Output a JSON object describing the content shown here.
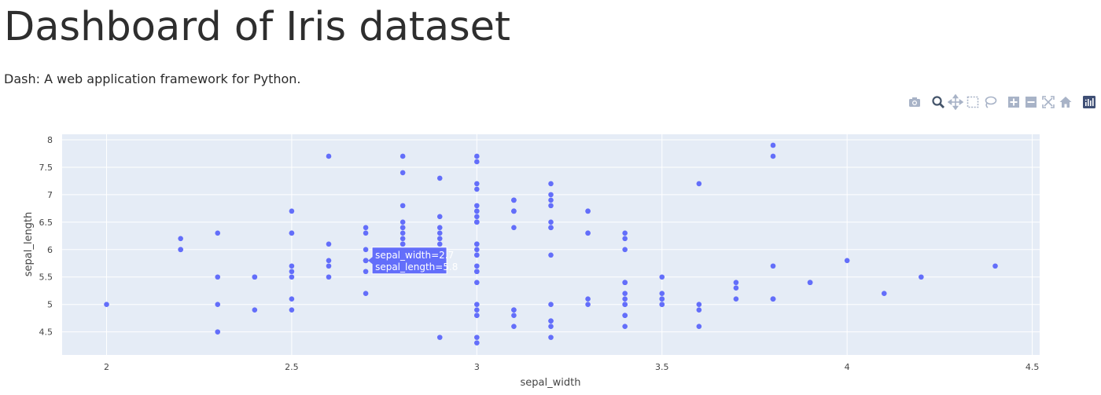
{
  "header": {
    "title": "Dashboard of Iris dataset",
    "subtitle": "Dash: A web application framework for Python."
  },
  "modebar": {
    "buttons": [
      {
        "name": "camera-icon",
        "title": "Download plot as a png"
      },
      {
        "name": "zoom-icon",
        "title": "Zoom"
      },
      {
        "name": "pan-icon",
        "title": "Pan"
      },
      {
        "name": "box-select-icon",
        "title": "Box Select"
      },
      {
        "name": "lasso-select-icon",
        "title": "Lasso Select"
      },
      {
        "name": "zoom-in-icon",
        "title": "Zoom in"
      },
      {
        "name": "zoom-out-icon",
        "title": "Zoom out"
      },
      {
        "name": "autoscale-icon",
        "title": "Autoscale"
      },
      {
        "name": "reset-axes-icon",
        "title": "Reset axes"
      },
      {
        "name": "plotly-logo-icon",
        "title": "Produced with Plotly"
      }
    ]
  },
  "colors": {
    "marker": "#636efa",
    "plot_bg": "#e5ecf6",
    "grid": "#ffffff",
    "icon": "#a8b3c7",
    "icon_active": "#44546a"
  },
  "chart_data": {
    "type": "scatter",
    "xlabel": "sepal_width",
    "ylabel": "sepal_length",
    "xlim": [
      1.88,
      4.52
    ],
    "ylim": [
      4.08,
      8.1
    ],
    "xticks": [
      2,
      2.5,
      3,
      3.5,
      4,
      4.5
    ],
    "xtick_labels": [
      "2",
      "2.5",
      "3",
      "3.5",
      "4",
      "4.5"
    ],
    "yticks": [
      4.5,
      5,
      5.5,
      6,
      6.5,
      7,
      7.5,
      8
    ],
    "ytick_labels": [
      "4.5",
      "5",
      "5.5",
      "6",
      "6.5",
      "7",
      "7.5",
      "8"
    ],
    "grid": true,
    "points": [
      [
        3.5,
        5.1
      ],
      [
        3.0,
        4.9
      ],
      [
        3.2,
        4.7
      ],
      [
        3.1,
        4.6
      ],
      [
        3.6,
        5.0
      ],
      [
        3.9,
        5.4
      ],
      [
        3.4,
        4.6
      ],
      [
        3.4,
        5.0
      ],
      [
        2.9,
        4.4
      ],
      [
        3.1,
        4.9
      ],
      [
        3.7,
        5.4
      ],
      [
        3.4,
        4.8
      ],
      [
        3.0,
        4.8
      ],
      [
        3.0,
        4.3
      ],
      [
        4.0,
        5.8
      ],
      [
        4.4,
        5.7
      ],
      [
        3.9,
        5.4
      ],
      [
        3.5,
        5.1
      ],
      [
        3.8,
        5.7
      ],
      [
        3.8,
        5.1
      ],
      [
        3.4,
        5.4
      ],
      [
        3.7,
        5.1
      ],
      [
        3.6,
        4.6
      ],
      [
        3.3,
        5.1
      ],
      [
        3.4,
        4.8
      ],
      [
        3.0,
        5.0
      ],
      [
        3.4,
        5.0
      ],
      [
        3.5,
        5.2
      ],
      [
        3.4,
        5.2
      ],
      [
        3.2,
        4.7
      ],
      [
        3.1,
        4.8
      ],
      [
        3.4,
        5.4
      ],
      [
        4.1,
        5.2
      ],
      [
        4.2,
        5.5
      ],
      [
        3.1,
        4.9
      ],
      [
        3.2,
        5.0
      ],
      [
        3.5,
        5.5
      ],
      [
        3.6,
        4.9
      ],
      [
        3.0,
        4.4
      ],
      [
        3.4,
        5.1
      ],
      [
        3.5,
        5.0
      ],
      [
        2.3,
        4.5
      ],
      [
        3.2,
        4.4
      ],
      [
        3.5,
        5.0
      ],
      [
        3.8,
        5.1
      ],
      [
        3.0,
        4.8
      ],
      [
        3.8,
        5.1
      ],
      [
        3.2,
        4.6
      ],
      [
        3.7,
        5.3
      ],
      [
        3.3,
        5.0
      ],
      [
        3.2,
        7.0
      ],
      [
        3.2,
        6.4
      ],
      [
        3.1,
        6.9
      ],
      [
        2.3,
        5.5
      ],
      [
        2.8,
        6.5
      ],
      [
        2.8,
        5.7
      ],
      [
        3.3,
        6.3
      ],
      [
        2.4,
        4.9
      ],
      [
        2.9,
        6.6
      ],
      [
        2.7,
        5.2
      ],
      [
        2.0,
        5.0
      ],
      [
        3.0,
        5.9
      ],
      [
        2.2,
        6.0
      ],
      [
        2.9,
        6.1
      ],
      [
        2.9,
        5.6
      ],
      [
        3.1,
        6.7
      ],
      [
        3.0,
        5.6
      ],
      [
        2.7,
        5.8
      ],
      [
        2.2,
        6.2
      ],
      [
        2.5,
        5.6
      ],
      [
        3.2,
        5.9
      ],
      [
        2.8,
        6.1
      ],
      [
        2.5,
        6.3
      ],
      [
        2.8,
        6.1
      ],
      [
        2.9,
        6.4
      ],
      [
        3.0,
        6.6
      ],
      [
        2.8,
        6.8
      ],
      [
        3.0,
        6.7
      ],
      [
        2.9,
        6.0
      ],
      [
        2.6,
        5.7
      ],
      [
        2.4,
        5.5
      ],
      [
        2.4,
        5.5
      ],
      [
        2.7,
        5.8
      ],
      [
        2.7,
        6.0
      ],
      [
        3.0,
        5.4
      ],
      [
        3.4,
        6.0
      ],
      [
        3.1,
        6.7
      ],
      [
        2.3,
        6.3
      ],
      [
        3.0,
        5.6
      ],
      [
        2.5,
        5.5
      ],
      [
        2.6,
        5.5
      ],
      [
        3.0,
        6.1
      ],
      [
        2.6,
        5.8
      ],
      [
        2.3,
        5.0
      ],
      [
        2.7,
        5.6
      ],
      [
        3.0,
        5.7
      ],
      [
        2.9,
        5.7
      ],
      [
        2.9,
        6.2
      ],
      [
        2.5,
        5.1
      ],
      [
        2.8,
        5.7
      ],
      [
        3.3,
        6.3
      ],
      [
        2.7,
        5.8
      ],
      [
        3.0,
        7.1
      ],
      [
        2.9,
        6.3
      ],
      [
        3.0,
        6.5
      ],
      [
        3.0,
        7.6
      ],
      [
        2.5,
        4.9
      ],
      [
        2.9,
        7.3
      ],
      [
        2.5,
        6.7
      ],
      [
        3.6,
        7.2
      ],
      [
        3.2,
        6.5
      ],
      [
        2.7,
        6.4
      ],
      [
        3.0,
        6.8
      ],
      [
        2.5,
        5.7
      ],
      [
        2.8,
        5.8
      ],
      [
        3.2,
        6.4
      ],
      [
        3.0,
        6.5
      ],
      [
        3.8,
        7.7
      ],
      [
        2.6,
        7.7
      ],
      [
        2.2,
        6.0
      ],
      [
        3.2,
        6.9
      ],
      [
        2.8,
        5.6
      ],
      [
        2.8,
        7.7
      ],
      [
        2.7,
        6.3
      ],
      [
        3.3,
        6.7
      ],
      [
        3.2,
        7.2
      ],
      [
        2.8,
        6.2
      ],
      [
        3.0,
        6.1
      ],
      [
        2.8,
        6.4
      ],
      [
        3.0,
        7.2
      ],
      [
        2.8,
        7.4
      ],
      [
        3.8,
        7.9
      ],
      [
        2.8,
        6.4
      ],
      [
        2.8,
        6.3
      ],
      [
        2.6,
        6.1
      ],
      [
        3.0,
        7.7
      ],
      [
        3.4,
        6.3
      ],
      [
        3.1,
        6.4
      ],
      [
        3.0,
        6.0
      ],
      [
        3.1,
        6.9
      ],
      [
        3.1,
        6.7
      ],
      [
        3.1,
        6.9
      ],
      [
        2.7,
        5.8
      ],
      [
        3.2,
        6.8
      ],
      [
        3.3,
        6.7
      ],
      [
        3.0,
        6.7
      ],
      [
        2.5,
        6.3
      ],
      [
        3.0,
        6.5
      ],
      [
        3.4,
        6.2
      ],
      [
        3.0,
        5.9
      ]
    ],
    "hover": {
      "x": 2.7,
      "y": 5.8,
      "line1": "sepal_width=2.7",
      "line2": "sepal_length=5.8"
    }
  }
}
